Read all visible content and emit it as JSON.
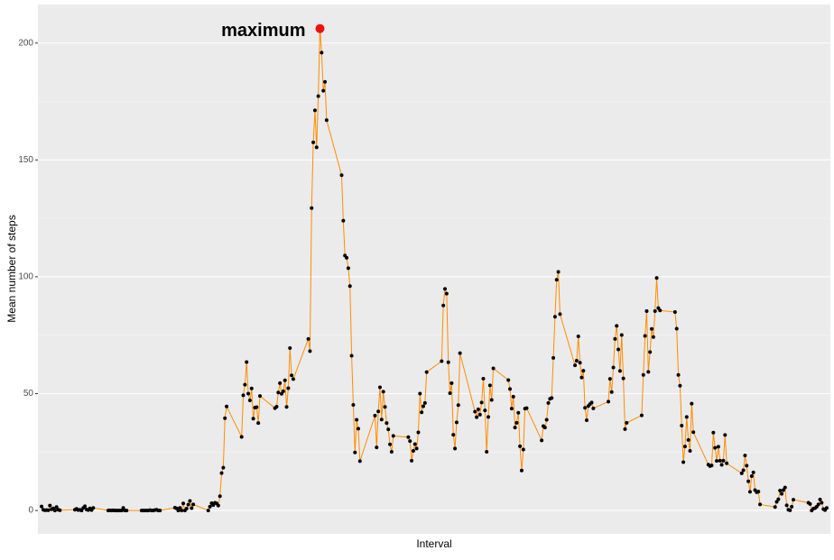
{
  "chart_data": {
    "type": "line",
    "x_label": "Interval",
    "y_label": "Mean number of steps",
    "xlim": [
      -11,
      2366
    ],
    "ylim": [
      -10,
      216.5
    ],
    "yticks": [
      0,
      50,
      100,
      150,
      200
    ],
    "minor_yticks": [
      25,
      75,
      125,
      175
    ],
    "grid": true,
    "line_color": "#ff8c00",
    "point_color": "#000000",
    "highlight": {
      "label": "maximum",
      "x": 835,
      "y": 206.2,
      "color": "#ee1111"
    },
    "x": [
      0,
      5,
      10,
      15,
      20,
      25,
      30,
      35,
      40,
      45,
      50,
      55,
      100,
      105,
      110,
      115,
      120,
      125,
      130,
      135,
      140,
      145,
      150,
      155,
      200,
      205,
      210,
      215,
      220,
      225,
      230,
      235,
      240,
      245,
      250,
      255,
      300,
      305,
      310,
      315,
      320,
      325,
      330,
      335,
      340,
      345,
      350,
      355,
      400,
      405,
      410,
      415,
      420,
      425,
      430,
      435,
      440,
      445,
      450,
      455,
      500,
      505,
      510,
      515,
      520,
      525,
      530,
      535,
      540,
      545,
      550,
      555,
      600,
      605,
      610,
      615,
      620,
      625,
      630,
      635,
      640,
      645,
      650,
      655,
      700,
      705,
      710,
      715,
      720,
      725,
      730,
      735,
      740,
      745,
      750,
      755,
      800,
      805,
      810,
      815,
      820,
      825,
      830,
      835,
      840,
      845,
      850,
      855,
      900,
      905,
      910,
      915,
      920,
      925,
      930,
      935,
      940,
      945,
      950,
      955,
      1000,
      1005,
      1010,
      1015,
      1020,
      1025,
      1030,
      1035,
      1040,
      1045,
      1050,
      1055,
      1100,
      1105,
      1110,
      1115,
      1120,
      1125,
      1130,
      1135,
      1140,
      1145,
      1150,
      1155,
      1200,
      1205,
      1210,
      1215,
      1220,
      1225,
      1230,
      1235,
      1240,
      1245,
      1250,
      1255,
      1300,
      1305,
      1310,
      1315,
      1320,
      1325,
      1330,
      1335,
      1340,
      1345,
      1350,
      1355,
      1400,
      1405,
      1410,
      1415,
      1420,
      1425,
      1430,
      1435,
      1440,
      1445,
      1450,
      1455,
      1500,
      1505,
      1510,
      1515,
      1520,
      1525,
      1530,
      1535,
      1540,
      1545,
      1550,
      1555,
      1600,
      1605,
      1610,
      1615,
      1620,
      1625,
      1630,
      1635,
      1640,
      1645,
      1650,
      1655,
      1700,
      1705,
      1710,
      1715,
      1720,
      1725,
      1730,
      1735,
      1740,
      1745,
      1750,
      1755,
      1800,
      1805,
      1810,
      1815,
      1820,
      1825,
      1830,
      1835,
      1840,
      1845,
      1850,
      1855,
      1900,
      1905,
      1910,
      1915,
      1920,
      1925,
      1930,
      1935,
      1940,
      1945,
      1950,
      1955,
      2000,
      2005,
      2010,
      2015,
      2020,
      2025,
      2030,
      2035,
      2040,
      2045,
      2050,
      2055,
      2100,
      2105,
      2110,
      2115,
      2120,
      2125,
      2130,
      2135,
      2140,
      2145,
      2150,
      2155,
      2200,
      2205,
      2210,
      2215,
      2220,
      2225,
      2230,
      2235,
      2240,
      2245,
      2250,
      2255,
      2300,
      2305,
      2310,
      2315,
      2320,
      2325,
      2330,
      2335,
      2340,
      2345,
      2350,
      2355
    ],
    "values": [
      1.7,
      0.3,
      0.1,
      0.2,
      0.1,
      2.1,
      0.5,
      0.9,
      0,
      1.5,
      0.3,
      0.1,
      0.3,
      0.7,
      0.2,
      0.3,
      0,
      1.1,
      1.8,
      0.4,
      0.2,
      0.9,
      0.2,
      1.1,
      0,
      0.1,
      0,
      0.1,
      0,
      0,
      0,
      0,
      0,
      1.1,
      0,
      0,
      0,
      0,
      0,
      0,
      0,
      0.2,
      0,
      0,
      0.2,
      0.3,
      0,
      0,
      1.2,
      0.9,
      0,
      1.1,
      0,
      3.0,
      0,
      0.8,
      2.5,
      4.1,
      1.0,
      2.6,
      0,
      1.6,
      3.1,
      2.3,
      3.3,
      3.0,
      2.1,
      6.1,
      16.0,
      18.3,
      39.5,
      44.5,
      31.5,
      49.3,
      53.8,
      63.5,
      50.0,
      47.1,
      52.2,
      39.3,
      44.0,
      44.2,
      37.4,
      49.0,
      43.8,
      44.4,
      50.5,
      54.5,
      49.9,
      51.0,
      55.7,
      44.3,
      52.3,
      69.5,
      57.8,
      56.2,
      73.4,
      68.2,
      129.4,
      157.5,
      171.2,
      155.4,
      177.3,
      206.2,
      195.9,
      179.6,
      183.4,
      167.0,
      143.5,
      124.0,
      109.1,
      108.1,
      103.7,
      96.0,
      66.2,
      45.2,
      24.8,
      38.8,
      35.0,
      21.1,
      40.6,
      27.0,
      42.4,
      52.7,
      38.9,
      50.8,
      44.3,
      37.4,
      34.7,
      28.3,
      25.1,
      31.9,
      31.4,
      29.7,
      21.3,
      25.5,
      28.4,
      26.5,
      33.4,
      50.0,
      42.0,
      44.6,
      46.0,
      59.2,
      63.9,
      87.7,
      94.8,
      92.8,
      63.4,
      50.2,
      54.5,
      32.4,
      26.5,
      37.7,
      45.1,
      67.3,
      42.3,
      39.9,
      43.3,
      41.0,
      46.2,
      56.4,
      42.8,
      25.1,
      40.0,
      53.5,
      47.3,
      60.8,
      55.8,
      52.0,
      43.6,
      48.7,
      35.5,
      37.5,
      41.8,
      27.5,
      17.1,
      26.1,
      43.6,
      43.8,
      30.0,
      36.1,
      35.5,
      38.8,
      46.0,
      47.8,
      48.1,
      65.3,
      82.9,
      98.7,
      102.1,
      84.0,
      62.1,
      64.1,
      74.5,
      63.2,
      56.9,
      59.8,
      43.9,
      38.6,
      44.7,
      45.5,
      46.2,
      43.7,
      46.6,
      56.3,
      50.7,
      61.2,
      73.4,
      79.0,
      68.9,
      59.7,
      75.1,
      56.5,
      34.8,
      37.5,
      40.7,
      58.0,
      74.7,
      85.3,
      59.3,
      67.8,
      77.7,
      74.2,
      85.3,
      99.5,
      86.6,
      85.6,
      84.9,
      77.8,
      58.0,
      53.4,
      36.3,
      20.7,
      27.4,
      40.0,
      30.2,
      25.5,
      45.7,
      33.5,
      19.6,
      19.0,
      19.3,
      33.3,
      26.8,
      21.2,
      27.3,
      21.3,
      19.5,
      21.3,
      32.3,
      20.2,
      15.9,
      17.2,
      23.5,
      19.2,
      12.5,
      8.0,
      14.7,
      16.3,
      8.7,
      7.8,
      8.1,
      2.6,
      1.5,
      3.7,
      4.8,
      8.5,
      7.1,
      8.7,
      9.8,
      2.2,
      0.3,
      0.1,
      1.6,
      4.6,
      3.3,
      2.8,
      0,
      0.8,
      1.0,
      1.6,
      2.6,
      4.7,
      3.3,
      0.6,
      0.2,
      1.1
    ]
  }
}
